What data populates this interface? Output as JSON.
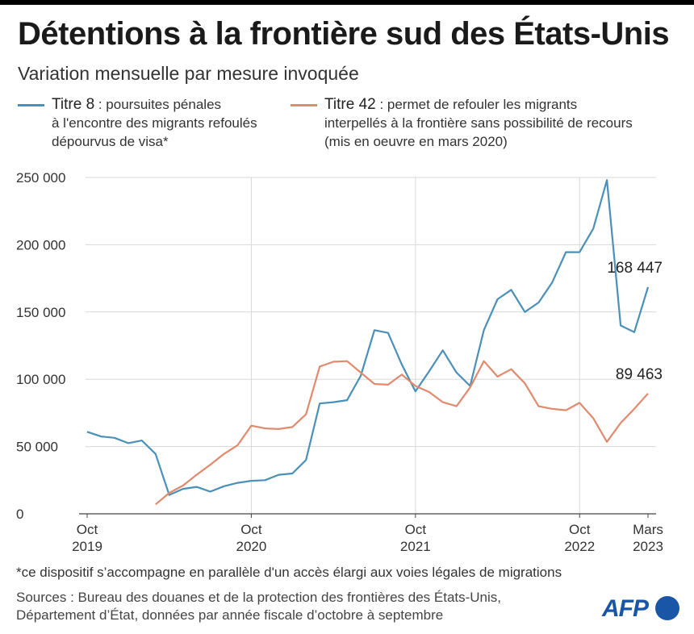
{
  "title": "Détentions à la frontière sud des États-Unis",
  "subtitle": "Variation mensuelle par mesure invoquée",
  "legend": {
    "t8_name": "Titre 8",
    "t8_desc_1": " : poursuites pénales",
    "t8_desc_2": "à l'encontre des migrants refoulés",
    "t8_desc_3": "dépourvus de visa*",
    "t42_name": "Titre 42",
    "t42_desc_1": " : permet de refouler les migrants",
    "t42_desc_2": "interpellés à la frontière sans possibilité de recours",
    "t42_desc_3": "(mis en oeuvre en mars 2020)"
  },
  "footnote": "*ce dispositif s’accompagne en parallèle d'un accès élargi aux voies légales de migrations",
  "sources_1": "Sources : Bureau des douanes et de la protection des frontières des États-Unis,",
  "sources_2": "Département d’État, données par année fiscale d’octobre à septembre",
  "logo_text": "AFP",
  "colors": {
    "titre8": "#4a90b8",
    "titre42": "#e08a6e",
    "grid": "#d9d9d9",
    "axis": "#444444"
  },
  "chart_data": {
    "type": "line",
    "ylim": [
      0,
      250000
    ],
    "y_ticks": [
      {
        "value": 0,
        "label": "0"
      },
      {
        "value": 50000,
        "label": "50 000"
      },
      {
        "value": 100000,
        "label": "100 000"
      },
      {
        "value": 150000,
        "label": "150 000"
      },
      {
        "value": 200000,
        "label": "200 000"
      },
      {
        "value": 250000,
        "label": "250 000"
      }
    ],
    "x_start": "2019-10",
    "x_end": "2023-03",
    "x_ticks": [
      {
        "month": "2019-10",
        "line1": "Oct",
        "line2": "2019",
        "grid": false
      },
      {
        "month": "2020-10",
        "line1": "Oct",
        "line2": "2020",
        "grid": true
      },
      {
        "month": "2021-10",
        "line1": "Oct",
        "line2": "2021",
        "grid": true
      },
      {
        "month": "2022-10",
        "line1": "Oct",
        "line2": "2022",
        "grid": true
      },
      {
        "month": "2023-03",
        "line1": "Mars",
        "line2": "2023",
        "grid": false
      }
    ],
    "series": [
      {
        "name": "Titre 8",
        "color": "#4a90b8",
        "start": "2019-10",
        "values": [
          61000,
          57500,
          56500,
          52500,
          54500,
          44500,
          14000,
          18500,
          20000,
          16500,
          20500,
          23000,
          24500,
          25000,
          29000,
          30000,
          40000,
          82000,
          83000,
          84500,
          102500,
          136500,
          134500,
          111000,
          91000,
          106000,
          121500,
          105000,
          95000,
          136500,
          159500,
          166500,
          150000,
          157000,
          172000,
          194500,
          194500,
          212000,
          248000,
          140000,
          135000,
          168447
        ],
        "end_label": "168 447"
      },
      {
        "name": "Titre 42",
        "color": "#e08a6e",
        "start": "2020-03",
        "values": [
          7000,
          15500,
          21000,
          29000,
          36500,
          44500,
          51000,
          65500,
          63500,
          63000,
          64500,
          74000,
          109500,
          113000,
          113500,
          105000,
          96500,
          96000,
          103500,
          95000,
          90500,
          83000,
          80000,
          94000,
          113500,
          102000,
          107500,
          97000,
          80000,
          78000,
          77000,
          82500,
          71000,
          53500,
          67500,
          78000,
          89463
        ],
        "end_label": "89 463"
      }
    ]
  }
}
